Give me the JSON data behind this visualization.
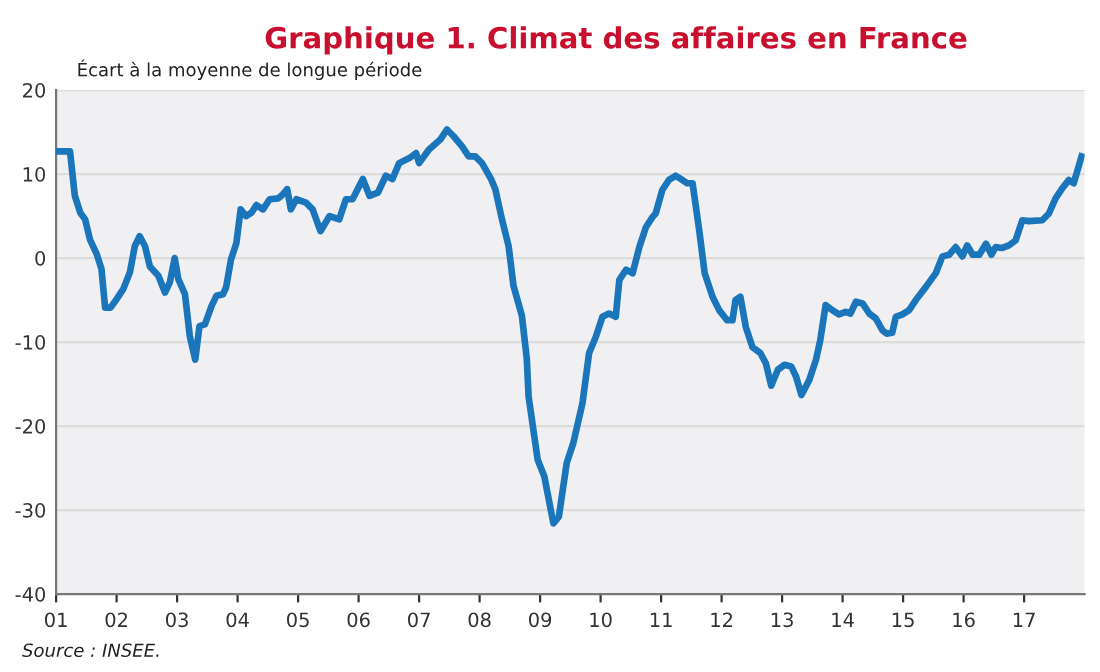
{
  "chart_data": {
    "type": "line",
    "title": "Graphique 1. Climat des affaires en France",
    "ylabel": "Écart à la moyenne de longue période",
    "annotations": [
      "Source : INSEE."
    ],
    "series": [
      {
        "color": "#1b75bb",
        "x": [
          2001.0,
          2001.18,
          2001.23,
          2001.31,
          2001.4,
          2001.48,
          2001.56,
          2001.67,
          2001.75,
          2001.81,
          2001.9,
          2002.0,
          2002.11,
          2002.22,
          2002.3,
          2002.38,
          2002.47,
          2002.55,
          2002.69,
          2002.8,
          2002.88,
          2002.96,
          2003.02,
          2003.13,
          2003.21,
          2003.3,
          2003.37,
          2003.46,
          2003.57,
          2003.65,
          2003.76,
          2003.81,
          2003.89,
          2003.98,
          2004.05,
          2004.14,
          2004.23,
          2004.31,
          2004.42,
          2004.53,
          2004.67,
          2004.75,
          2004.82,
          2004.88,
          2004.97,
          2005.13,
          2005.24,
          2005.37,
          2005.52,
          2005.68,
          2005.79,
          2005.9,
          2006.07,
          2006.18,
          2006.32,
          2006.45,
          2006.56,
          2006.67,
          2006.84,
          2006.95,
          2007.0,
          2007.16,
          2007.35,
          2007.46,
          2007.57,
          2007.71,
          2007.82,
          2007.93,
          2008.04,
          2008.19,
          2008.26,
          2008.37,
          2008.48,
          2008.56,
          2008.7,
          2008.78,
          2008.81,
          2008.96,
          2009.07,
          2009.22,
          2009.31,
          2009.44,
          2009.55,
          2009.7,
          2009.81,
          2009.92,
          2010.03,
          2010.14,
          2010.25,
          2010.31,
          2010.42,
          2010.53,
          2010.64,
          2010.75,
          2010.86,
          2010.91,
          2011.02,
          2011.13,
          2011.24,
          2011.35,
          2011.43,
          2011.52,
          2011.63,
          2011.72,
          2011.85,
          2011.96,
          2012.09,
          2012.18,
          2012.23,
          2012.31,
          2012.4,
          2012.51,
          2012.64,
          2012.73,
          2012.82,
          2012.93,
          2013.04,
          2013.15,
          2013.23,
          2013.32,
          2013.45,
          2013.56,
          2013.63,
          2013.72,
          2013.83,
          2013.94,
          2014.05,
          2014.13,
          2014.22,
          2014.33,
          2014.44,
          2014.55,
          2014.66,
          2014.73,
          2014.82,
          2014.88,
          2014.99,
          2015.1,
          2015.21,
          2015.38,
          2015.54,
          2015.65,
          2015.76,
          2015.87,
          2015.98,
          2016.06,
          2016.15,
          2016.26,
          2016.37,
          2016.46,
          2016.53,
          2016.64,
          2016.75,
          2016.86,
          2016.97,
          2017.08,
          2017.3,
          2017.41,
          2017.52,
          2017.63,
          2017.74,
          2017.82,
          2017.95
        ],
        "values": [
          12.7,
          12.7,
          12.7,
          7.4,
          5.4,
          4.6,
          2.2,
          0.5,
          -1.3,
          -5.9,
          -5.9,
          -4.9,
          -3.7,
          -1.7,
          1.4,
          2.6,
          1.4,
          -1.0,
          -2.1,
          -4.1,
          -2.9,
          0,
          -2.5,
          -4.3,
          -9.3,
          -12.1,
          -8.1,
          -7.9,
          -5.7,
          -4.5,
          -4.3,
          -3.5,
          -0.2,
          1.8,
          5.8,
          5.0,
          5.4,
          6.3,
          5.8,
          7.0,
          7.1,
          7.6,
          8.2,
          5.8,
          7.0,
          6.6,
          5.8,
          3.2,
          5.0,
          4.6,
          7.0,
          7.0,
          9.4,
          7.4,
          7.8,
          9.8,
          9.4,
          11.3,
          11.9,
          12.5,
          11.3,
          12.9,
          14.1,
          15.3,
          14.5,
          13.3,
          12.1,
          12.1,
          11.3,
          9.4,
          8.2,
          4.6,
          1.4,
          -3.3,
          -6.9,
          -12,
          -16.5,
          -24,
          -26,
          -31.6,
          -30.8,
          -24.4,
          -22,
          -17.3,
          -11.3,
          -9.4,
          -7.0,
          -6.6,
          -7.0,
          -2.6,
          -1.4,
          -1.8,
          1.3,
          3.7,
          4.9,
          5.3,
          8.1,
          9.3,
          9.8,
          9.3,
          8.9,
          8.9,
          3.3,
          -1.8,
          -4.6,
          -6.2,
          -7.4,
          -7.4,
          -5.0,
          -4.6,
          -8.2,
          -10.6,
          -11.3,
          -12.5,
          -15.2,
          -13.3,
          -12.7,
          -12.9,
          -14.1,
          -16.3,
          -14.5,
          -12.1,
          -9.8,
          -5.6,
          -6.2,
          -6.7,
          -6.4,
          -6.6,
          -5.2,
          -5.4,
          -6.6,
          -7.2,
          -8.6,
          -9.0,
          -8.9,
          -7.0,
          -6.7,
          -6.2,
          -5.0,
          -3.4,
          -1.8,
          0.2,
          0.4,
          1.3,
          0.2,
          1.5,
          0.4,
          0.4,
          1.7,
          0.4,
          1.3,
          1.2,
          1.5,
          2.1,
          4.5,
          4.4,
          4.5,
          5.3,
          7.1,
          8.3,
          9.3,
          8.9,
          12.1
        ]
      }
    ],
    "xlim": [
      2001,
      2018
    ],
    "ylim": [
      -40,
      20
    ],
    "xticks": [
      {
        "value": 2001,
        "label": "01"
      },
      {
        "value": 2002,
        "label": "02"
      },
      {
        "value": 2003,
        "label": "03"
      },
      {
        "value": 2004,
        "label": "04"
      },
      {
        "value": 2005,
        "label": "05"
      },
      {
        "value": 2006,
        "label": "06"
      },
      {
        "value": 2007,
        "label": "07"
      },
      {
        "value": 2008,
        "label": "08"
      },
      {
        "value": 2009,
        "label": "09"
      },
      {
        "value": 2010,
        "label": "10"
      },
      {
        "value": 2011,
        "label": "11"
      },
      {
        "value": 2012,
        "label": "12"
      },
      {
        "value": 2013,
        "label": "13"
      },
      {
        "value": 2014,
        "label": "14"
      },
      {
        "value": 2015,
        "label": "15"
      },
      {
        "value": 2016,
        "label": "16"
      },
      {
        "value": 2017,
        "label": "17"
      }
    ],
    "yticks": [
      -40,
      -30,
      -20,
      -10,
      0,
      10,
      20
    ],
    "grid": "y",
    "marker": "none",
    "line_style": "solid"
  }
}
